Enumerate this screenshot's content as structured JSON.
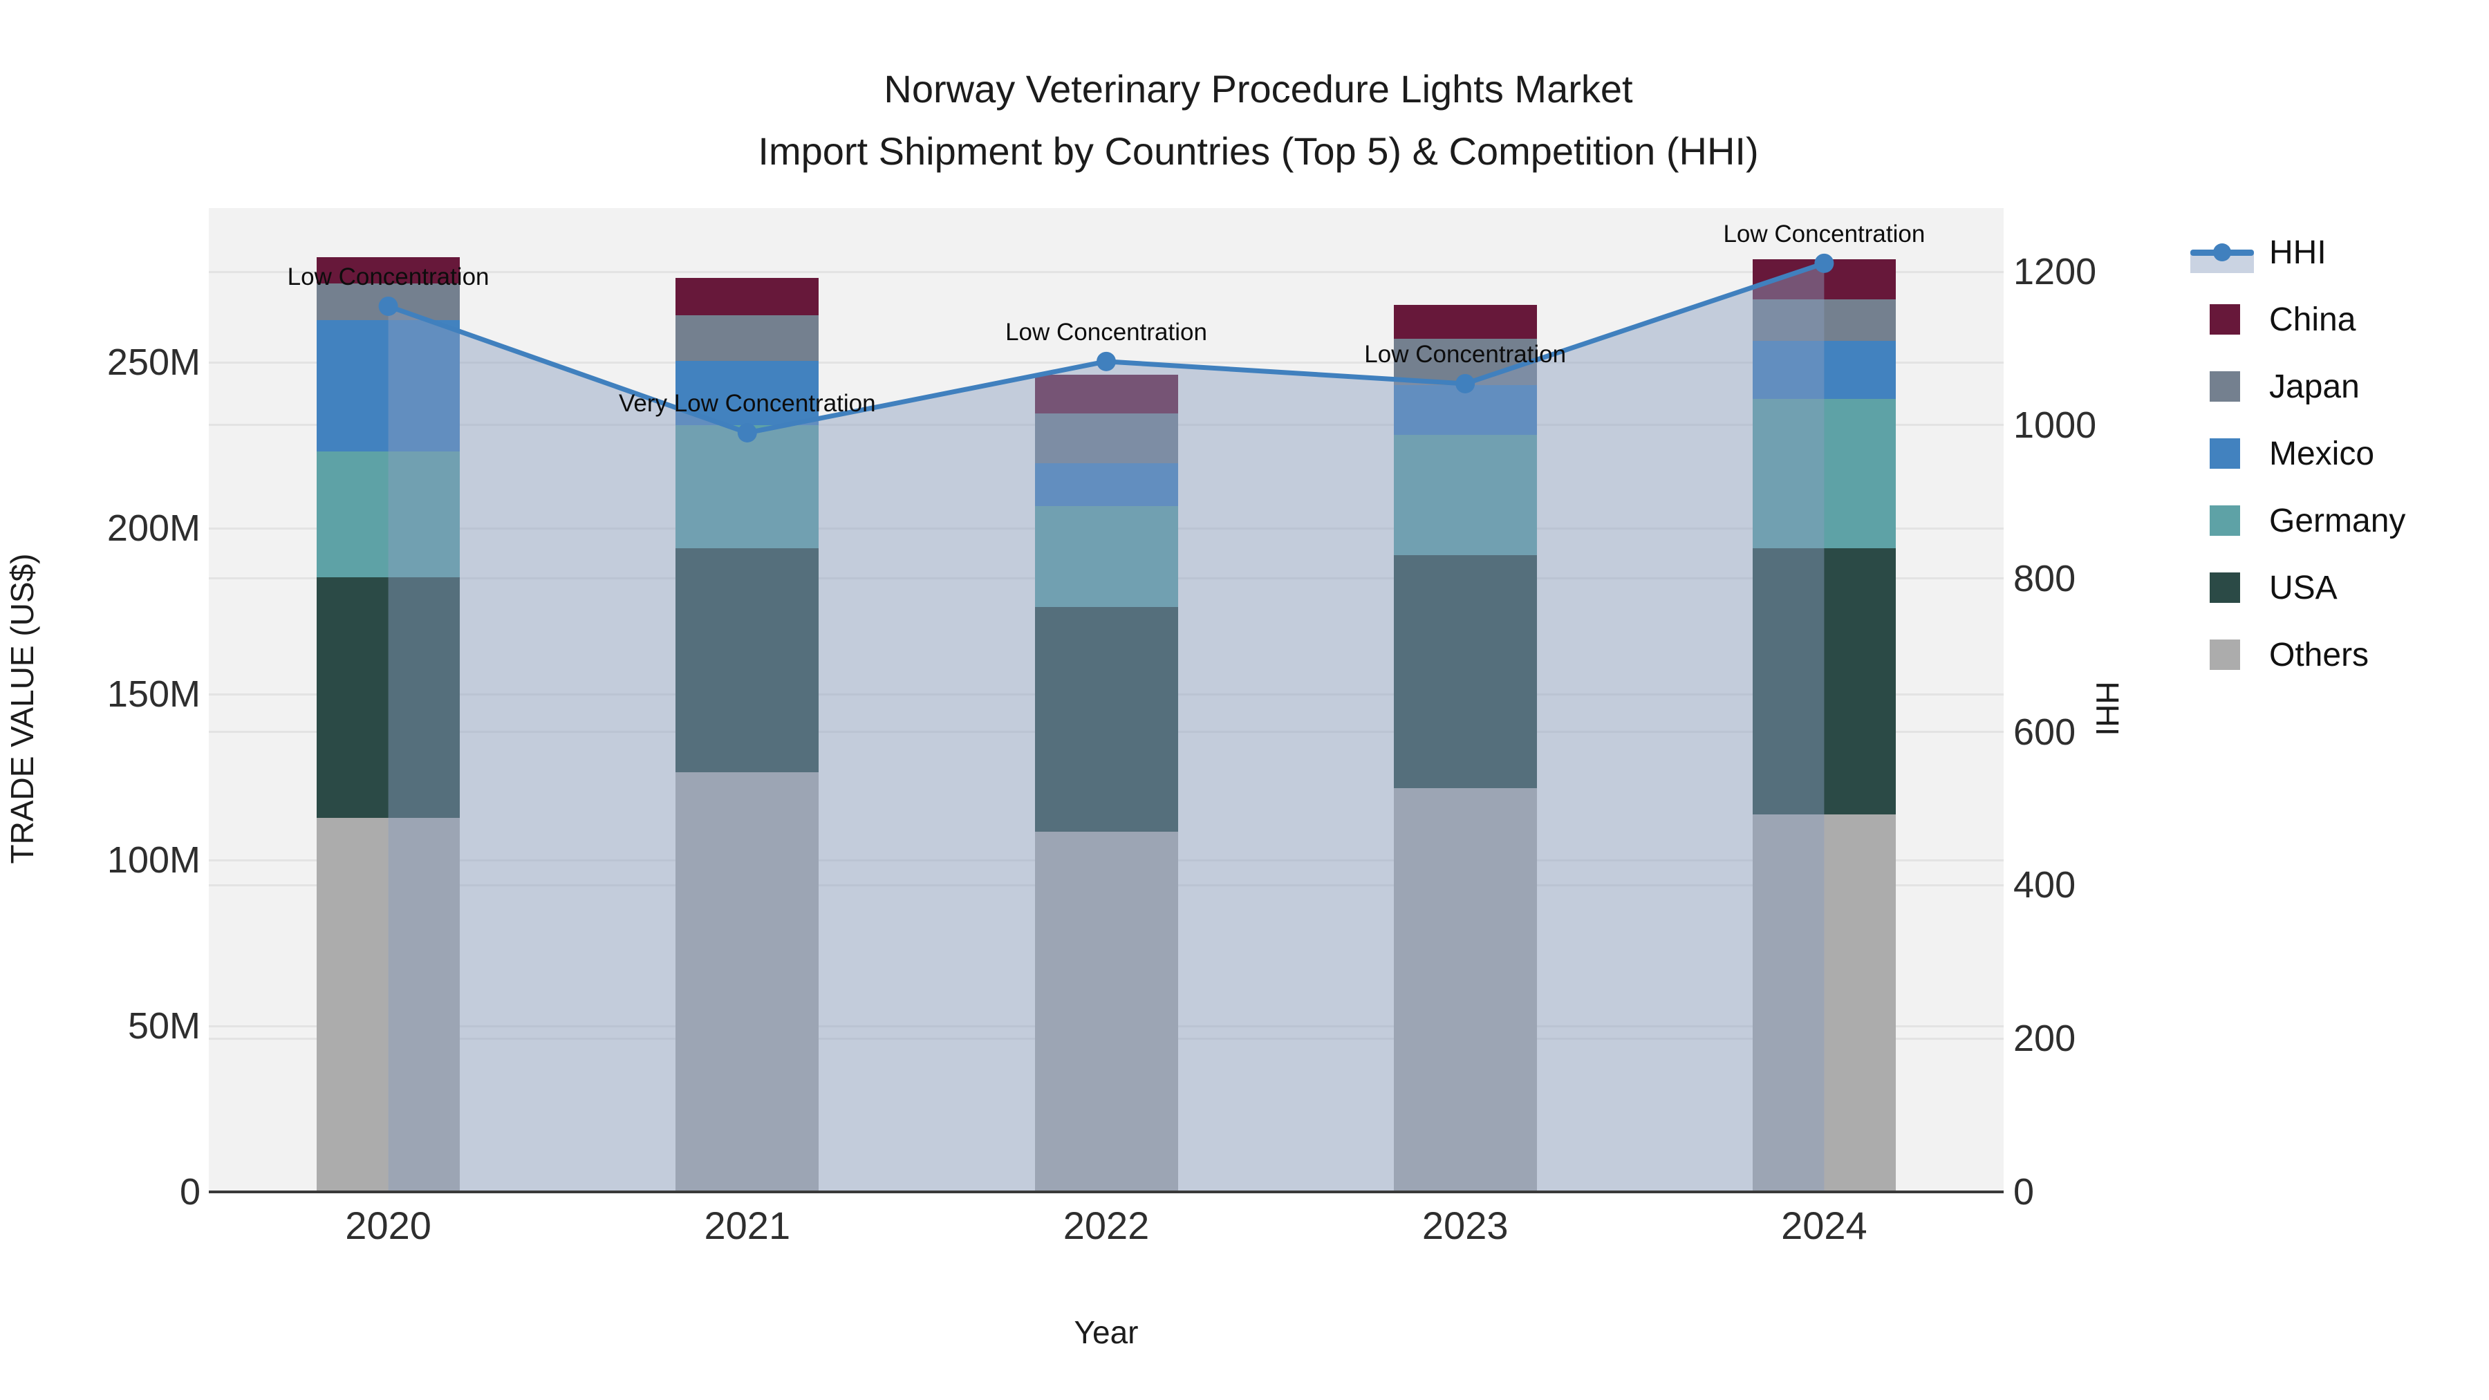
{
  "title": {
    "line1": "Norway Veterinary Procedure Lights Market",
    "line2": "Import Shipment by Countries (Top 5) & Competition (HHI)"
  },
  "axes": {
    "y_left": {
      "title": "TRADE VALUE (US$)",
      "tick_labels": [
        "0",
        "50M",
        "100M",
        "150M",
        "200M",
        "250M"
      ],
      "tick_values": [
        0,
        50,
        100,
        150,
        200,
        250
      ]
    },
    "y_right": {
      "title": "HHI",
      "tick_labels": [
        "0",
        "200",
        "400",
        "600",
        "800",
        "1000",
        "1200"
      ],
      "tick_values": [
        0,
        200,
        400,
        600,
        800,
        1000,
        1200
      ]
    },
    "x": {
      "title": "Year"
    }
  },
  "legend": [
    {
      "label": "HHI",
      "type": "line",
      "color": "#4080be"
    },
    {
      "label": "China",
      "type": "box",
      "color": "#67183a"
    },
    {
      "label": "Japan",
      "type": "box",
      "color": "#74808f"
    },
    {
      "label": "Mexico",
      "type": "box",
      "color": "#4282bf"
    },
    {
      "label": "Germany",
      "type": "box",
      "color": "#5ea2a6"
    },
    {
      "label": "USA",
      "type": "box",
      "color": "#2b4a46"
    },
    {
      "label": "Others",
      "type": "box",
      "color": "#acacac"
    }
  ],
  "chart_data": {
    "type": "bar",
    "subtype": "stacked-bar-with-line",
    "unit": "Million US$",
    "categories": [
      "2020",
      "2021",
      "2022",
      "2023",
      "2024"
    ],
    "series": [
      {
        "name": "China",
        "axis": "left",
        "values": [
          8.1,
          11.2,
          11.5,
          10.2,
          12.1
        ],
        "color": "#67183a"
      },
      {
        "name": "Japan",
        "axis": "left",
        "values": [
          11.0,
          13.8,
          15.0,
          14.0,
          12.5
        ],
        "color": "#74808f"
      },
      {
        "name": "Mexico",
        "axis": "left",
        "values": [
          39.6,
          19.4,
          13.1,
          15.0,
          17.5
        ],
        "color": "#4282bf"
      },
      {
        "name": "Germany",
        "axis": "left",
        "values": [
          37.9,
          37.1,
          30.4,
          36.2,
          45.0
        ],
        "color": "#5ea2a6"
      },
      {
        "name": "USA",
        "axis": "left",
        "values": [
          72.5,
          67.5,
          67.7,
          70.2,
          80.2
        ],
        "color": "#2b4a46"
      },
      {
        "name": "Others",
        "axis": "left",
        "values": [
          112.7,
          126.5,
          108.5,
          121.7,
          113.8
        ],
        "color": "#acacac"
      }
    ],
    "line_series": {
      "name": "HHI",
      "axis": "right",
      "values": [
        1155,
        990,
        1083,
        1054,
        1211
      ],
      "color": "#4080be",
      "area_fill": "rgba(137,158,190,0.45)"
    },
    "annotations": [
      "Low Concentration",
      "Very Low Concentration",
      "Low Concentration",
      "Low Concentration",
      "Low Concentration"
    ],
    "title": "Norway Veterinary Procedure Lights Market — Import Shipment by Countries (Top 5) & Competition (HHI)",
    "xlabel": "Year",
    "ylabel_left": "TRADE VALUE (US$)",
    "ylabel_right": "HHI",
    "ylim_left": [
      0,
      296.5
    ],
    "ylim_right": [
      0,
      1283
    ],
    "grid": true,
    "legend_position": "right"
  },
  "colors": {
    "plot_background": "#f2f2f2",
    "page_background": "#ffffff",
    "gridline": "#e3e3e3",
    "axis_line": "#3a3a3a",
    "hhi_line": "#4080be",
    "hhi_area": "rgba(137,158,190,0.45)"
  }
}
